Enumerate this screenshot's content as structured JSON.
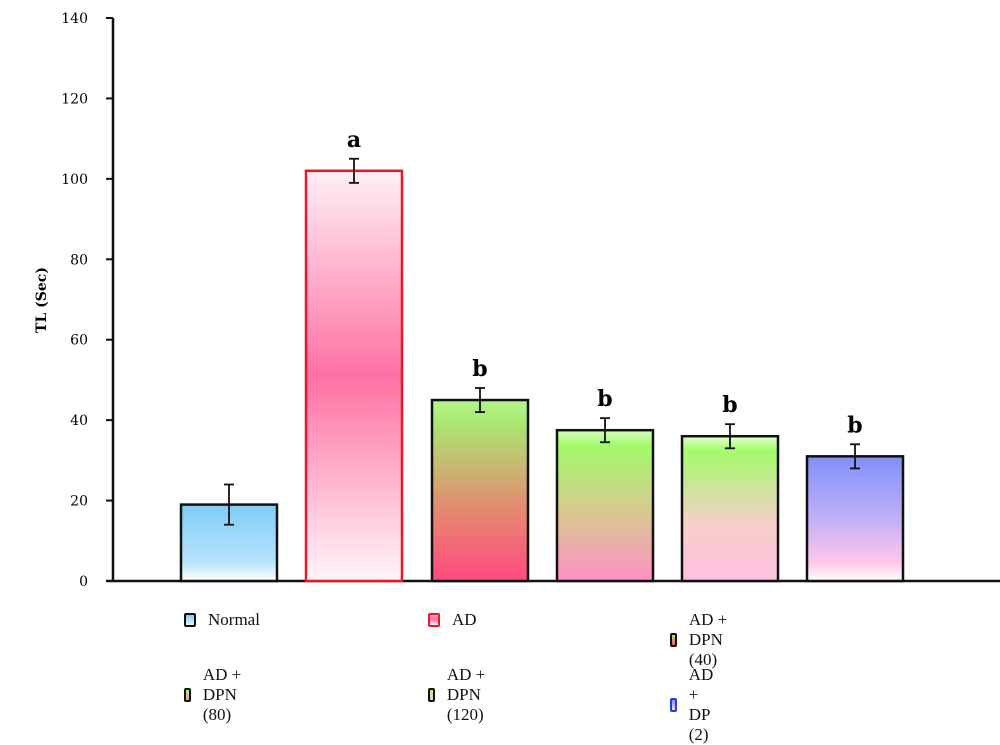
{
  "chart_data": {
    "type": "bar",
    "title": "",
    "xlabel": "",
    "ylabel": "TL (Sec)",
    "ylim": [
      0,
      140
    ],
    "yticks": [
      0,
      20,
      40,
      60,
      80,
      100,
      120,
      140
    ],
    "categories": [
      "Normal",
      "AD",
      "AD + DPN (40)",
      "AD + DPN (80)",
      "AD + DPN (120)",
      "AD + DP (2)"
    ],
    "values": [
      19,
      102,
      45,
      37.5,
      36,
      31
    ],
    "errors": [
      5,
      3,
      3,
      3,
      3,
      3
    ],
    "annotations": [
      "",
      "a",
      "b",
      "b",
      "b",
      "b"
    ],
    "grid": false,
    "legend_position": "bottom"
  },
  "legend": [
    {
      "label": "Normal"
    },
    {
      "label": "AD"
    },
    {
      "label": "AD + DPN (40)"
    },
    {
      "label": "AD + DPN (80)"
    },
    {
      "label": "AD + DPN (120)"
    },
    {
      "label": "AD + DP (2)"
    }
  ],
  "colors": {
    "normal": [
      "#7fcbf7",
      "#ffffff"
    ],
    "ad": [
      "#ffffff",
      "#ff6fa2",
      "#ffffff"
    ],
    "ad_border": "#e8182c",
    "dpn40": [
      "#a8f070",
      "#ff4f82"
    ],
    "dpn80": [
      "#a3fb6a",
      "#ff94c4"
    ],
    "dpn120": [
      "#a3fb6a",
      "#ffbde0"
    ],
    "dp2": [
      "#8090f8",
      "#ffffff"
    ]
  }
}
